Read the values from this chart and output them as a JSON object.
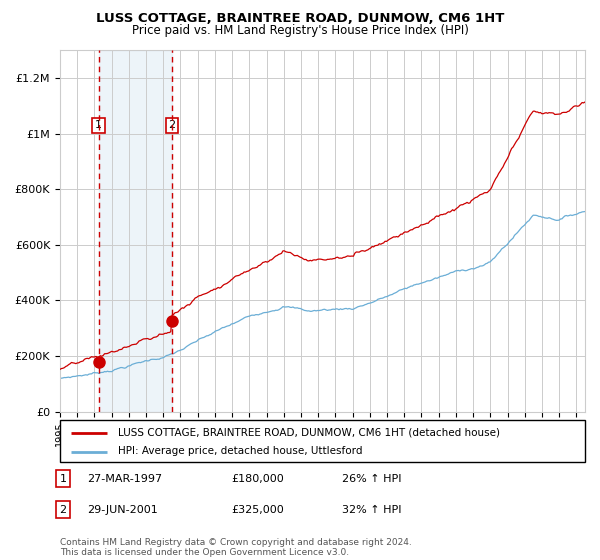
{
  "title1": "LUSS COTTAGE, BRAINTREE ROAD, DUNMOW, CM6 1HT",
  "title2": "Price paid vs. HM Land Registry's House Price Index (HPI)",
  "legend_line1": "LUSS COTTAGE, BRAINTREE ROAD, DUNMOW, CM6 1HT (detached house)",
  "legend_line2": "HPI: Average price, detached house, Uttlesford",
  "transaction1_date": "27-MAR-1997",
  "transaction1_price": 180000,
  "transaction1_hpi": "26% ↑ HPI",
  "transaction2_date": "29-JUN-2001",
  "transaction2_price": 325000,
  "transaction2_hpi": "32% ↑ HPI",
  "footnote": "Contains HM Land Registry data © Crown copyright and database right 2024.\nThis data is licensed under the Open Government Licence v3.0.",
  "hpi_color": "#6baed6",
  "price_color": "#cc0000",
  "vline_color": "#cc0000",
  "shade_color": "#cce0f0",
  "background_color": "#ffffff",
  "grid_color": "#cccccc",
  "ylim": [
    0,
    1300000
  ],
  "yticks": [
    0,
    200000,
    400000,
    600000,
    800000,
    1000000,
    1200000
  ],
  "start_year": 1995.0,
  "end_year": 2025.5
}
